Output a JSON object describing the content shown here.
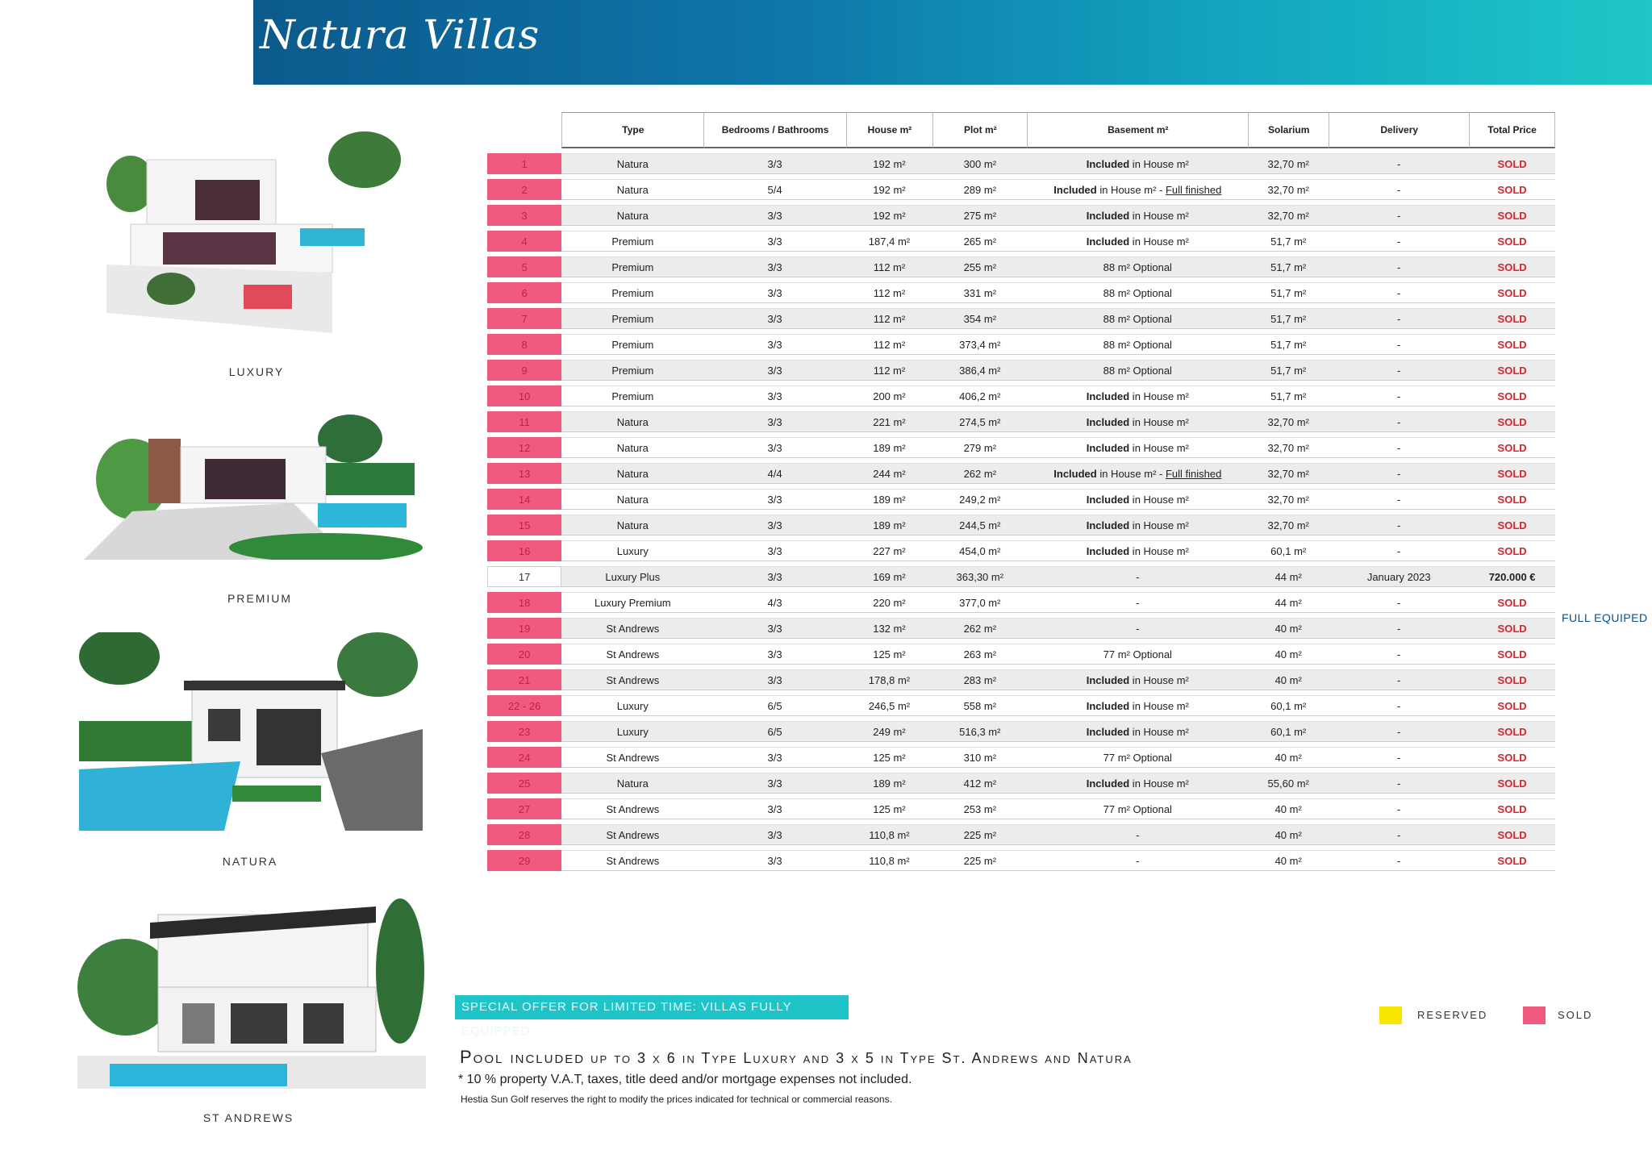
{
  "header": {
    "logo": "Natura Villas"
  },
  "villas": [
    {
      "label": "LUXURY"
    },
    {
      "label": "PREMIUM"
    },
    {
      "label": "NATURA"
    },
    {
      "label": "ST ANDREWS"
    }
  ],
  "table": {
    "columns": [
      "Type",
      "Bedrooms / Bathrooms",
      "House m²",
      "Plot m²",
      "Basement m²",
      "Solarium",
      "Delivery",
      "Total Price"
    ],
    "rows": [
      {
        "num": "1",
        "type": "Natura",
        "bb": "3/3",
        "house": "192 m²",
        "plot": "300 m²",
        "bsm_bold": "Included",
        "bsm_text": " in House m²",
        "bsm_u": "",
        "solarium": "32,70 m²",
        "delivery": "-",
        "price": "SOLD"
      },
      {
        "num": "2",
        "type": "Natura",
        "bb": "5/4",
        "house": "192 m²",
        "plot": "289 m²",
        "bsm_bold": "Included",
        "bsm_text": " in House m² - ",
        "bsm_u": "Full finished",
        "solarium": "32,70 m²",
        "delivery": "-",
        "price": "SOLD"
      },
      {
        "num": "3",
        "type": "Natura",
        "bb": "3/3",
        "house": "192 m²",
        "plot": "275 m²",
        "bsm_bold": "Included",
        "bsm_text": " in House m²",
        "bsm_u": "",
        "solarium": "32,70 m²",
        "delivery": "-",
        "price": "SOLD"
      },
      {
        "num": "4",
        "type": "Premium",
        "bb": "3/3",
        "house": "187,4 m²",
        "plot": "265 m²",
        "bsm_bold": "Included",
        "bsm_text": " in House m²",
        "bsm_u": "",
        "solarium": "51,7 m²",
        "delivery": "-",
        "price": "SOLD"
      },
      {
        "num": "5",
        "type": "Premium",
        "bb": "3/3",
        "house": "112 m²",
        "plot": "255 m²",
        "bsm_bold": "",
        "bsm_text": "88 m² Optional",
        "bsm_u": "",
        "solarium": "51,7 m²",
        "delivery": "-",
        "price": "SOLD"
      },
      {
        "num": "6",
        "type": "Premium",
        "bb": "3/3",
        "house": "112 m²",
        "plot": "331 m²",
        "bsm_bold": "",
        "bsm_text": "88 m² Optional",
        "bsm_u": "",
        "solarium": "51,7 m²",
        "delivery": "-",
        "price": "SOLD"
      },
      {
        "num": "7",
        "type": "Premium",
        "bb": "3/3",
        "house": "112 m²",
        "plot": "354 m²",
        "bsm_bold": "",
        "bsm_text": "88 m² Optional",
        "bsm_u": "",
        "solarium": "51,7 m²",
        "delivery": "-",
        "price": "SOLD"
      },
      {
        "num": "8",
        "type": "Premium",
        "bb": "3/3",
        "house": "112 m²",
        "plot": "373,4 m²",
        "bsm_bold": "",
        "bsm_text": "88 m² Optional",
        "bsm_u": "",
        "solarium": "51,7 m²",
        "delivery": "-",
        "price": "SOLD"
      },
      {
        "num": "9",
        "type": "Premium",
        "bb": "3/3",
        "house": "112 m²",
        "plot": "386,4 m²",
        "bsm_bold": "",
        "bsm_text": "88 m² Optional",
        "bsm_u": "",
        "solarium": "51,7 m²",
        "delivery": "-",
        "price": "SOLD"
      },
      {
        "num": "10",
        "type": "Premium",
        "bb": "3/3",
        "house": "200 m²",
        "plot": "406,2 m²",
        "bsm_bold": "Included",
        "bsm_text": " in House m²",
        "bsm_u": "",
        "solarium": "51,7 m²",
        "delivery": "-",
        "price": "SOLD"
      },
      {
        "num": "11",
        "type": "Natura",
        "bb": "3/3",
        "house": "221 m²",
        "plot": "274,5 m²",
        "bsm_bold": "Included",
        "bsm_text": " in House m²",
        "bsm_u": "",
        "solarium": "32,70 m²",
        "delivery": "-",
        "price": "SOLD"
      },
      {
        "num": "12",
        "type": "Natura",
        "bb": "3/3",
        "house": "189 m²",
        "plot": "279 m²",
        "bsm_bold": "Included",
        "bsm_text": " in House m²",
        "bsm_u": "",
        "solarium": "32,70 m²",
        "delivery": "-",
        "price": "SOLD"
      },
      {
        "num": "13",
        "type": "Natura",
        "bb": "4/4",
        "house": "244 m²",
        "plot": "262 m²",
        "bsm_bold": "Included",
        "bsm_text": " in House m² - ",
        "bsm_u": "Full finished",
        "solarium": "32,70 m²",
        "delivery": "-",
        "price": "SOLD"
      },
      {
        "num": "14",
        "type": "Natura",
        "bb": "3/3",
        "house": "189 m²",
        "plot": "249,2 m²",
        "bsm_bold": "Included",
        "bsm_text": " in House m²",
        "bsm_u": "",
        "solarium": "32,70 m²",
        "delivery": "-",
        "price": "SOLD"
      },
      {
        "num": "15",
        "type": "Natura",
        "bb": "3/3",
        "house": "189 m²",
        "plot": "244,5 m²",
        "bsm_bold": "Included",
        "bsm_text": " in House m²",
        "bsm_u": "",
        "solarium": "32,70 m²",
        "delivery": "-",
        "price": "SOLD"
      },
      {
        "num": "16",
        "type": "Luxury",
        "bb": "3/3",
        "house": "227 m²",
        "plot": "454,0 m²",
        "bsm_bold": "Included",
        "bsm_text": " in House m²",
        "bsm_u": "",
        "solarium": "60,1 m²",
        "delivery": "-",
        "price": "SOLD"
      },
      {
        "num": "17",
        "type": "Luxury Plus",
        "bb": "3/3",
        "house": "169 m²",
        "plot": "363,30 m²",
        "bsm_bold": "",
        "bsm_text": "-",
        "bsm_u": "",
        "solarium": "44 m²",
        "delivery": "January 2023",
        "price": "720.000 €",
        "available": true,
        "side_note": "FULL EQUIPED"
      },
      {
        "num": "18",
        "type": "Luxury Premium",
        "bb": "4/3",
        "house": "220 m²",
        "plot": "377,0 m²",
        "bsm_bold": "",
        "bsm_text": "-",
        "bsm_u": "",
        "solarium": "44 m²",
        "delivery": "-",
        "price": "SOLD"
      },
      {
        "num": "19",
        "type": "St Andrews",
        "bb": "3/3",
        "house": "132 m²",
        "plot": "262 m²",
        "bsm_bold": "",
        "bsm_text": "-",
        "bsm_u": "",
        "solarium": "40 m²",
        "delivery": "-",
        "price": "SOLD"
      },
      {
        "num": "20",
        "type": "St Andrews",
        "bb": "3/3",
        "house": "125 m²",
        "plot": "263 m²",
        "bsm_bold": "",
        "bsm_text": "77 m² Optional",
        "bsm_u": "",
        "solarium": "40 m²",
        "delivery": "-",
        "price": "SOLD"
      },
      {
        "num": "21",
        "type": "St Andrews",
        "bb": "3/3",
        "house": "178,8 m²",
        "plot": "283 m²",
        "bsm_bold": "Included",
        "bsm_text": " in House m²",
        "bsm_u": "",
        "solarium": "40 m²",
        "delivery": "-",
        "price": "SOLD"
      },
      {
        "num": "22 - 26",
        "type": "Luxury",
        "bb": "6/5",
        "house": "246,5 m²",
        "plot": "558 m²",
        "bsm_bold": "Included",
        "bsm_text": " in House m²",
        "bsm_u": "",
        "solarium": "60,1 m²",
        "delivery": "-",
        "price": "SOLD"
      },
      {
        "num": "23",
        "type": "Luxury",
        "bb": "6/5",
        "house": "249 m²",
        "plot": "516,3 m²",
        "bsm_bold": "Included",
        "bsm_text": " in House m²",
        "bsm_u": "",
        "solarium": "60,1 m²",
        "delivery": "-",
        "price": "SOLD"
      },
      {
        "num": "24",
        "type": "St Andrews",
        "bb": "3/3",
        "house": "125 m²",
        "plot": "310 m²",
        "bsm_bold": "",
        "bsm_text": "77 m² Optional",
        "bsm_u": "",
        "solarium": "40 m²",
        "delivery": "-",
        "price": "SOLD"
      },
      {
        "num": "25",
        "type": "Natura",
        "bb": "3/3",
        "house": "189 m²",
        "plot": "412 m²",
        "bsm_bold": "Included",
        "bsm_text": " in House m²",
        "bsm_u": "",
        "solarium": "55,60 m²",
        "delivery": "-",
        "price": "SOLD"
      },
      {
        "num": "27",
        "type": "St Andrews",
        "bb": "3/3",
        "house": "125 m²",
        "plot": "253 m²",
        "bsm_bold": "",
        "bsm_text": "77 m² Optional",
        "bsm_u": "",
        "solarium": "40 m²",
        "delivery": "-",
        "price": "SOLD"
      },
      {
        "num": "28",
        "type": "St Andrews",
        "bb": "3/3",
        "house": "110,8 m²",
        "plot": "225 m²",
        "bsm_bold": "",
        "bsm_text": "-",
        "bsm_u": "",
        "solarium": "40 m²",
        "delivery": "-",
        "price": "SOLD"
      },
      {
        "num": "29",
        "type": "St Andrews",
        "bb": "3/3",
        "house": "110,8 m²",
        "plot": "225 m²",
        "bsm_bold": "",
        "bsm_text": "-",
        "bsm_u": "",
        "solarium": "40 m²",
        "delivery": "-",
        "price": "SOLD"
      }
    ]
  },
  "offer": "SPECIAL OFFER FOR LIMITED TIME: VILLAS FULLY EQUIPPED",
  "legend": {
    "reserved": {
      "label": "RESERVED",
      "color": "#f7e600"
    },
    "sold": {
      "label": "SOLD",
      "color": "#f05a7e"
    }
  },
  "footer": {
    "pool_big": "Pool included",
    "pool_rest": " up to 3 x 6 in Type Luxury and 3 x 5 in Type St. Andrews and Natura",
    "note1": "* 10 % property V.A.T, taxes, title deed and/or mortgage expenses not included.",
    "note2": "Hestia Sun Golf reserves the right to modify the prices indicated for technical or commercial reasons."
  }
}
